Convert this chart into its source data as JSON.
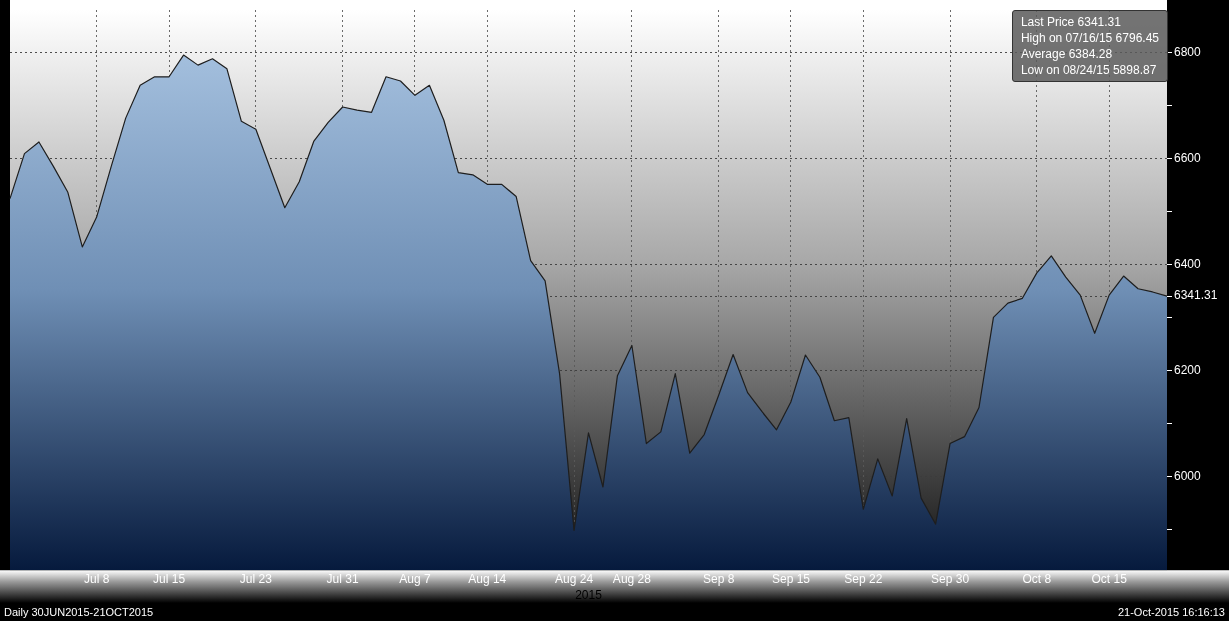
{
  "chart_data": {
    "type": "area",
    "xlabel": "2015",
    "categories": [
      null,
      null,
      null,
      null,
      null,
      null,
      "Jul 8",
      null,
      null,
      null,
      null,
      "Jul 15",
      null,
      null,
      null,
      null,
      null,
      "Jul 23",
      null,
      null,
      null,
      null,
      null,
      "Jul 31",
      null,
      null,
      null,
      null,
      "Aug 7",
      null,
      null,
      null,
      null,
      "Aug 14",
      null,
      null,
      null,
      null,
      null,
      "Aug 24",
      null,
      null,
      null,
      "Aug 28",
      null,
      null,
      null,
      null,
      null,
      "Sep 8",
      null,
      null,
      null,
      null,
      "Sep 15",
      null,
      null,
      null,
      null,
      "Sep 22",
      null,
      null,
      null,
      null,
      null,
      "Sep 30",
      null,
      null,
      null,
      null,
      null,
      "Oct 8",
      null,
      null,
      null,
      null,
      "Oct 15",
      null,
      null,
      null,
      null
    ],
    "series": [
      {
        "color": "#6f8fb5",
        "values": [
          6525,
          6610,
          6632,
          6586,
          6537,
          6434,
          6491,
          6586,
          6677,
          6739,
          6755,
          6755,
          6796,
          6777,
          6789,
          6770,
          6671,
          6656,
          6582,
          6508,
          6557,
          6633,
          6669,
          6698,
          6692,
          6688,
          6755,
          6747,
          6720,
          6739,
          6673,
          6574,
          6570,
          6552,
          6552,
          6529,
          6408,
          6370,
          6195,
          5899,
          6083,
          5981,
          6191,
          6248,
          6063,
          6085,
          6195,
          6045,
          6080,
          6154,
          6231,
          6159,
          6123,
          6089,
          6142,
          6230,
          6188,
          6106,
          6112,
          5939,
          6034,
          5964,
          6110,
          5960,
          5911,
          6063,
          6076,
          6131,
          6301,
          6328,
          6337,
          6385,
          6417,
          6377,
          6343,
          6271,
          6343,
          6379,
          6355,
          6349,
          6341
        ]
      }
    ],
    "ylim": [
      5824,
      6881
    ],
    "yticks": [
      {
        "value": 5900,
        "label": null
      },
      6000,
      {
        "value": 6100,
        "label": null
      },
      6200,
      {
        "value": 6300,
        "label": null
      },
      {
        "value": 6341.31,
        "label": "6341.31"
      },
      6400,
      {
        "value": 6500,
        "label": null
      },
      6600,
      {
        "value": 6700,
        "label": null
      },
      6800
    ],
    "grid": true,
    "annotations": [
      "Last Price 6341.31",
      "High on 07/16/15 6796.45",
      "Average 6384.28",
      "Low on 08/24/15 5898.87",
      "Daily 30JUN2015-21OCT2015",
      "21-Oct-2015 16:16:13"
    ]
  }
}
